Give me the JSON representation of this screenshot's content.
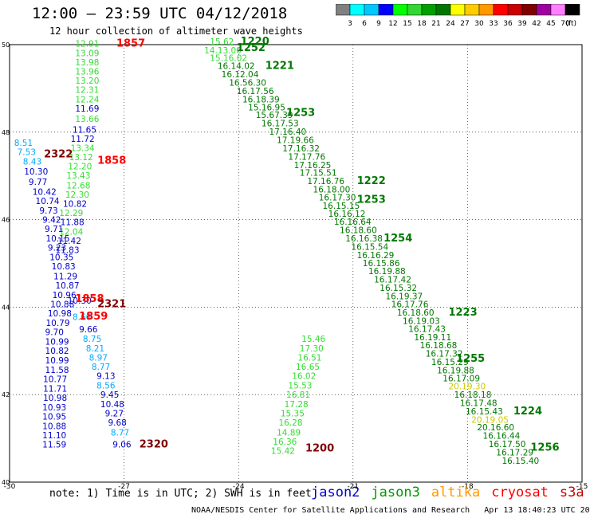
{
  "title": "12:00 — 23:59 UTC 04/12/2018",
  "subtitle": "12 hour collection of altimeter wave heights",
  "colorbar": {
    "unit": "(ft)",
    "bins": [
      {
        "label": "",
        "color": "#808080"
      },
      {
        "label": "3",
        "color": "#00ffff"
      },
      {
        "label": "6",
        "color": "#00c8ff"
      },
      {
        "label": "9",
        "color": "#0000ff"
      },
      {
        "label": "12",
        "color": "#00ff00"
      },
      {
        "label": "15",
        "color": "#33d633"
      },
      {
        "label": "18",
        "color": "#00a000"
      },
      {
        "label": "21",
        "color": "#007800"
      },
      {
        "label": "24",
        "color": "#ffff00"
      },
      {
        "label": "27",
        "color": "#ffcc00"
      },
      {
        "label": "30",
        "color": "#ff9900"
      },
      {
        "label": "33",
        "color": "#ff0000"
      },
      {
        "label": "36",
        "color": "#c80000"
      },
      {
        "label": "39",
        "color": "#800000"
      },
      {
        "label": "42",
        "color": "#a000a0"
      },
      {
        "label": "45",
        "color": "#ff80ff"
      },
      {
        "label": "70",
        "color": "#000000"
      }
    ]
  },
  "axes": {
    "x_ticks": [
      "-30",
      "-27",
      "-24",
      "-21",
      "-18",
      "-15"
    ],
    "y_ticks": [
      "50",
      "48",
      "46",
      "44",
      "42",
      "40"
    ]
  },
  "note": "note: 1) Time is in UTC; 2) SWH is in feet",
  "legend": [
    {
      "name": "jason2",
      "color": "#0000cc"
    },
    {
      "name": "jason3",
      "color": "#009900"
    },
    {
      "name": "altika",
      "color": "#ff9900"
    },
    {
      "name": "cryosat",
      "color": "#ff0000"
    },
    {
      "name": "s3a",
      "color": "#cc0000"
    }
  ],
  "footer": "NOAA/NESDIS Center for Satellite Applications and Research   Apr 13 18:40:23 UTC 2018",
  "map_labels": [
    {
      "t": "12.91",
      "lon": -28.28,
      "lat": 49.95,
      "c": "#33dd33"
    },
    {
      "t": "13.09",
      "lon": -28.28,
      "lat": 49.74,
      "c": "#33dd33"
    },
    {
      "t": "13.98",
      "lon": -28.28,
      "lat": 49.53,
      "c": "#33dd33"
    },
    {
      "t": "13.96",
      "lon": -28.28,
      "lat": 49.32,
      "c": "#33dd33"
    },
    {
      "t": "13.20",
      "lon": -28.28,
      "lat": 49.11,
      "c": "#33dd33"
    },
    {
      "t": "12.31",
      "lon": -28.28,
      "lat": 48.9,
      "c": "#33dd33"
    },
    {
      "t": "12.24",
      "lon": -28.28,
      "lat": 48.68,
      "c": "#33dd33"
    },
    {
      "t": "11.69",
      "lon": -28.28,
      "lat": 48.47,
      "c": "#0000cc"
    },
    {
      "t": "13.66",
      "lon": -28.28,
      "lat": 48.23,
      "c": "#33dd33"
    },
    {
      "t": "11.65",
      "lon": -28.35,
      "lat": 47.99,
      "c": "#0000cc"
    },
    {
      "t": "11.72",
      "lon": -28.4,
      "lat": 47.78,
      "c": "#0000cc"
    },
    {
      "t": "13.34",
      "lon": -28.4,
      "lat": 47.57,
      "c": "#33dd33"
    },
    {
      "t": "13.12",
      "lon": -28.44,
      "lat": 47.36,
      "c": "#33dd33"
    },
    {
      "t": "12.20",
      "lon": -28.47,
      "lat": 47.15,
      "c": "#33dd33"
    },
    {
      "t": "13.43",
      "lon": -28.51,
      "lat": 46.94,
      "c": "#33dd33"
    },
    {
      "t": "12.68",
      "lon": -28.51,
      "lat": 46.71,
      "c": "#33dd33"
    },
    {
      "t": "12.30",
      "lon": -28.54,
      "lat": 46.5,
      "c": "#33dd33"
    },
    {
      "t": "10.82",
      "lon": -28.6,
      "lat": 46.29,
      "c": "#0000cc"
    },
    {
      "t": "12.29",
      "lon": -28.7,
      "lat": 46.08,
      "c": "#33dd33"
    },
    {
      "t": "11.88",
      "lon": -28.67,
      "lat": 45.87,
      "c": "#0000cc"
    },
    {
      "t": "12.04",
      "lon": -28.7,
      "lat": 45.66,
      "c": "#33dd33"
    },
    {
      "t": "11.42",
      "lon": -28.75,
      "lat": 45.45,
      "c": "#0000cc"
    },
    {
      "t": "11.83",
      "lon": -28.8,
      "lat": 45.24,
      "c": "#0000cc"
    },
    {
      "t": "8.51",
      "lon": -29.88,
      "lat": 47.69,
      "c": "#00aaff"
    },
    {
      "t": "7.53",
      "lon": -29.8,
      "lat": 47.48,
      "c": "#00aaff"
    },
    {
      "t": "8.43",
      "lon": -29.65,
      "lat": 47.26,
      "c": "#00aaff"
    },
    {
      "t": "10.30",
      "lon": -29.62,
      "lat": 47.03,
      "c": "#0000cc"
    },
    {
      "t": "9.77",
      "lon": -29.5,
      "lat": 46.79,
      "c": "#0000cc"
    },
    {
      "t": "10.42",
      "lon": -29.4,
      "lat": 46.57,
      "c": "#0000cc"
    },
    {
      "t": "10.74",
      "lon": -29.32,
      "lat": 46.36,
      "c": "#0000cc"
    },
    {
      "t": "9.73",
      "lon": -29.22,
      "lat": 46.14,
      "c": "#0000cc"
    },
    {
      "t": "9.42",
      "lon": -29.14,
      "lat": 45.93,
      "c": "#0000cc"
    },
    {
      "t": "9.71",
      "lon": -29.08,
      "lat": 45.72,
      "c": "#0000cc"
    },
    {
      "t": "10.15",
      "lon": -29.05,
      "lat": 45.5,
      "c": "#0000cc"
    },
    {
      "t": "9.23",
      "lon": -29.0,
      "lat": 45.29,
      "c": "#0000cc"
    },
    {
      "t": "10.35",
      "lon": -28.95,
      "lat": 45.07,
      "c": "#0000cc"
    },
    {
      "t": "10.83",
      "lon": -28.9,
      "lat": 44.86,
      "c": "#0000cc"
    },
    {
      "t": "11.29",
      "lon": -28.85,
      "lat": 44.64,
      "c": "#0000cc"
    },
    {
      "t": "10.87",
      "lon": -28.8,
      "lat": 44.43,
      "c": "#0000cc"
    },
    {
      "t": "10.96",
      "lon": -28.88,
      "lat": 44.21,
      "c": "#0000cc"
    },
    {
      "t": "10.30",
      "lon": -28.48,
      "lat": 44.08,
      "c": "#0000cc"
    },
    {
      "t": "10.88",
      "lon": -28.93,
      "lat": 44.0,
      "c": "#0000cc"
    },
    {
      "t": "10.98",
      "lon": -29.0,
      "lat": 43.79,
      "c": "#0000cc"
    },
    {
      "t": "8.66",
      "lon": -28.35,
      "lat": 43.71,
      "c": "#00aaff"
    },
    {
      "t": "10.79",
      "lon": -29.05,
      "lat": 43.57,
      "c": "#0000cc"
    },
    {
      "t": "9.66",
      "lon": -28.18,
      "lat": 43.42,
      "c": "#0000cc"
    },
    {
      "t": "9.70",
      "lon": -29.07,
      "lat": 43.36,
      "c": "#0000cc"
    },
    {
      "t": "10.99",
      "lon": -29.07,
      "lat": 43.14,
      "c": "#0000cc"
    },
    {
      "t": "8.75",
      "lon": -28.08,
      "lat": 43.21,
      "c": "#00aaff"
    },
    {
      "t": "10.82",
      "lon": -29.07,
      "lat": 42.93,
      "c": "#0000cc"
    },
    {
      "t": "8.21",
      "lon": -28.0,
      "lat": 42.99,
      "c": "#00aaff"
    },
    {
      "t": "10.99",
      "lon": -29.07,
      "lat": 42.71,
      "c": "#0000cc"
    },
    {
      "t": "8.97",
      "lon": -27.92,
      "lat": 42.78,
      "c": "#00aaff"
    },
    {
      "t": "11.58",
      "lon": -29.07,
      "lat": 42.5,
      "c": "#0000cc"
    },
    {
      "t": "8.77",
      "lon": -27.85,
      "lat": 42.57,
      "c": "#00aaff"
    },
    {
      "t": "10.77",
      "lon": -29.12,
      "lat": 42.29,
      "c": "#0000cc"
    },
    {
      "t": "9.13",
      "lon": -27.72,
      "lat": 42.36,
      "c": "#0000cc"
    },
    {
      "t": "11.71",
      "lon": -29.12,
      "lat": 42.07,
      "c": "#0000cc"
    },
    {
      "t": "8.56",
      "lon": -27.72,
      "lat": 42.14,
      "c": "#00aaff"
    },
    {
      "t": "10.98",
      "lon": -29.12,
      "lat": 41.86,
      "c": "#0000cc"
    },
    {
      "t": "9.45",
      "lon": -27.62,
      "lat": 41.93,
      "c": "#0000cc"
    },
    {
      "t": "10.93",
      "lon": -29.14,
      "lat": 41.64,
      "c": "#0000cc"
    },
    {
      "t": "10.48",
      "lon": -27.62,
      "lat": 41.71,
      "c": "#0000cc"
    },
    {
      "t": "10.95",
      "lon": -29.14,
      "lat": 41.43,
      "c": "#0000cc"
    },
    {
      "t": "9.27",
      "lon": -27.5,
      "lat": 41.5,
      "c": "#0000cc"
    },
    {
      "t": "10.88",
      "lon": -29.14,
      "lat": 41.21,
      "c": "#0000cc"
    },
    {
      "t": "9.68",
      "lon": -27.42,
      "lat": 41.29,
      "c": "#0000cc"
    },
    {
      "t": "11.10",
      "lon": -29.14,
      "lat": 41.0,
      "c": "#0000cc"
    },
    {
      "t": "8.77",
      "lon": -27.35,
      "lat": 41.07,
      "c": "#00aaff"
    },
    {
      "t": "11.59",
      "lon": -29.14,
      "lat": 40.79,
      "c": "#0000cc"
    },
    {
      "t": "9.06",
      "lon": -27.3,
      "lat": 40.79,
      "c": "#0000cc"
    },
    {
      "t": "1857",
      "lon": -27.2,
      "lat": 49.95,
      "c": "#ff0000",
      "bold": true
    },
    {
      "t": "2322",
      "lon": -29.1,
      "lat": 47.42,
      "c": "#800000",
      "bold": true
    },
    {
      "t": "1858",
      "lon": -27.7,
      "lat": 47.28,
      "c": "#ff0000",
      "bold": true
    },
    {
      "t": "1858",
      "lon": -28.28,
      "lat": 44.12,
      "c": "#ff0000",
      "bold": true
    },
    {
      "t": "2321",
      "lon": -27.7,
      "lat": 44.0,
      "c": "#800000",
      "bold": true
    },
    {
      "t": "1859",
      "lon": -28.18,
      "lat": 43.72,
      "c": "#ff0000",
      "bold": true
    },
    {
      "t": "2320",
      "lon": -26.6,
      "lat": 40.79,
      "c": "#800000",
      "bold": true
    },
    {
      "t": "1200",
      "lon": -22.25,
      "lat": 40.7,
      "c": "#800000",
      "bold": true
    },
    {
      "t": "15.62",
      "lon": -24.75,
      "lat": 50.0,
      "c": "#33dd33"
    },
    {
      "t": "1220",
      "lon": -23.95,
      "lat": 50.0,
      "c": "#007800",
      "bold": true
    },
    {
      "t": "14.13.00",
      "lon": -24.9,
      "lat": 49.8,
      "c": "#33dd33"
    },
    {
      "t": "1252",
      "lon": -24.05,
      "lat": 49.85,
      "c": "#007800",
      "bold": true
    },
    {
      "t": "15.16.02",
      "lon": -24.75,
      "lat": 49.63,
      "c": "#33dd33"
    },
    {
      "t": "16.14.02",
      "lon": -24.55,
      "lat": 49.44,
      "c": "#007800"
    },
    {
      "t": "1221",
      "lon": -23.3,
      "lat": 49.44,
      "c": "#007800",
      "bold": true
    },
    {
      "t": "16.12.04",
      "lon": -24.45,
      "lat": 49.25,
      "c": "#007800"
    },
    {
      "t": "16.56.30",
      "lon": -24.25,
      "lat": 49.06,
      "c": "#007800"
    },
    {
      "t": "16.17.56",
      "lon": -24.05,
      "lat": 48.87,
      "c": "#007800"
    },
    {
      "t": "16.18.39",
      "lon": -23.9,
      "lat": 48.68,
      "c": "#007800"
    },
    {
      "t": "15.16.95",
      "lon": -23.75,
      "lat": 48.5,
      "c": "#007800"
    },
    {
      "t": "1253",
      "lon": -22.75,
      "lat": 48.37,
      "c": "#007800",
      "bold": true
    },
    {
      "t": "15.67.39",
      "lon": -23.55,
      "lat": 48.32,
      "c": "#007800"
    },
    {
      "t": "16.17.53",
      "lon": -23.4,
      "lat": 48.13,
      "c": "#007800"
    },
    {
      "t": "17.16.40",
      "lon": -23.2,
      "lat": 47.94,
      "c": "#007800"
    },
    {
      "t": "17.19.66",
      "lon": -23.0,
      "lat": 47.75,
      "c": "#007800"
    },
    {
      "t": "17.16.32",
      "lon": -22.85,
      "lat": 47.56,
      "c": "#007800"
    },
    {
      "t": "17.17.76",
      "lon": -22.7,
      "lat": 47.37,
      "c": "#007800"
    },
    {
      "t": "17.16.25",
      "lon": -22.55,
      "lat": 47.18,
      "c": "#007800"
    },
    {
      "t": "17.15.51",
      "lon": -22.4,
      "lat": 47.0,
      "c": "#007800"
    },
    {
      "t": "17.16.76",
      "lon": -22.2,
      "lat": 46.81,
      "c": "#007800"
    },
    {
      "t": "1222",
      "lon": -20.9,
      "lat": 46.81,
      "c": "#007800",
      "bold": true
    },
    {
      "t": "16.18.00",
      "lon": -22.05,
      "lat": 46.62,
      "c": "#007800"
    },
    {
      "t": "16.17.30",
      "lon": -21.9,
      "lat": 46.44,
      "c": "#007800"
    },
    {
      "t": "1253",
      "lon": -20.9,
      "lat": 46.38,
      "c": "#007800",
      "bold": true
    },
    {
      "t": "16.15.15",
      "lon": -21.8,
      "lat": 46.25,
      "c": "#007800"
    },
    {
      "t": "16.16.12",
      "lon": -21.65,
      "lat": 46.07,
      "c": "#007800"
    },
    {
      "t": "16.16.64",
      "lon": -21.5,
      "lat": 45.88,
      "c": "#007800"
    },
    {
      "t": "16.18.60",
      "lon": -21.35,
      "lat": 45.69,
      "c": "#007800"
    },
    {
      "t": "16.16.38",
      "lon": -21.2,
      "lat": 45.5,
      "c": "#007800"
    },
    {
      "t": "1254",
      "lon": -20.2,
      "lat": 45.5,
      "c": "#007800",
      "bold": true
    },
    {
      "t": "16.15.54",
      "lon": -21.05,
      "lat": 45.31,
      "c": "#007800"
    },
    {
      "t": "16.16.29",
      "lon": -20.9,
      "lat": 45.12,
      "c": "#007800"
    },
    {
      "t": "16.15.86",
      "lon": -20.75,
      "lat": 44.94,
      "c": "#007800"
    },
    {
      "t": "16.19.88",
      "lon": -20.6,
      "lat": 44.75,
      "c": "#007800"
    },
    {
      "t": "16.17.42",
      "lon": -20.45,
      "lat": 44.56,
      "c": "#007800"
    },
    {
      "t": "16.15.32",
      "lon": -20.3,
      "lat": 44.37,
      "c": "#007800"
    },
    {
      "t": "16.19.37",
      "lon": -20.15,
      "lat": 44.18,
      "c": "#007800"
    },
    {
      "t": "16.17.76",
      "lon": -20.0,
      "lat": 44.0,
      "c": "#007800"
    },
    {
      "t": "16.18.60",
      "lon": -19.85,
      "lat": 43.81,
      "c": "#007800"
    },
    {
      "t": "1223",
      "lon": -18.5,
      "lat": 43.81,
      "c": "#007800",
      "bold": true
    },
    {
      "t": "16.19.03",
      "lon": -19.7,
      "lat": 43.62,
      "c": "#007800"
    },
    {
      "t": "16.17.43",
      "lon": -19.55,
      "lat": 43.43,
      "c": "#007800"
    },
    {
      "t": "16.19.11",
      "lon": -19.4,
      "lat": 43.24,
      "c": "#007800"
    },
    {
      "t": "16.18.68",
      "lon": -19.25,
      "lat": 43.06,
      "c": "#007800"
    },
    {
      "t": "16.17.32",
      "lon": -19.1,
      "lat": 42.87,
      "c": "#007800"
    },
    {
      "t": "1255",
      "lon": -18.3,
      "lat": 42.75,
      "c": "#007800",
      "bold": true
    },
    {
      "t": "16.15.29",
      "lon": -18.95,
      "lat": 42.68,
      "c": "#007800"
    },
    {
      "t": "16.19.88",
      "lon": -18.8,
      "lat": 42.49,
      "c": "#007800"
    },
    {
      "t": "16.17.09",
      "lon": -18.65,
      "lat": 42.3,
      "c": "#007800"
    },
    {
      "t": "20.19.30",
      "lon": -18.5,
      "lat": 42.12,
      "c": "#cccc00"
    },
    {
      "t": "16.18.18",
      "lon": -18.35,
      "lat": 41.93,
      "c": "#007800"
    },
    {
      "t": "16.17.48",
      "lon": -18.2,
      "lat": 41.74,
      "c": "#007800"
    },
    {
      "t": "16.15.43",
      "lon": -18.05,
      "lat": 41.55,
      "c": "#007800"
    },
    {
      "t": "1224",
      "lon": -16.8,
      "lat": 41.55,
      "c": "#007800",
      "bold": true
    },
    {
      "t": "20.19.05",
      "lon": -17.9,
      "lat": 41.36,
      "c": "#cccc00"
    },
    {
      "t": "20.16.60",
      "lon": -17.75,
      "lat": 41.18,
      "c": "#007800"
    },
    {
      "t": "16.16.44",
      "lon": -17.6,
      "lat": 40.99,
      "c": "#007800"
    },
    {
      "t": "16.17.50",
      "lon": -17.45,
      "lat": 40.8,
      "c": "#007800"
    },
    {
      "t": "1256",
      "lon": -16.35,
      "lat": 40.72,
      "c": "#007800",
      "bold": true
    },
    {
      "t": "16.17.29",
      "lon": -17.25,
      "lat": 40.61,
      "c": "#007800"
    },
    {
      "t": "16.15.40",
      "lon": -17.1,
      "lat": 40.42,
      "c": "#007800"
    },
    {
      "t": "15.46",
      "lon": -22.35,
      "lat": 43.21,
      "c": "#33dd33"
    },
    {
      "t": "17.30",
      "lon": -22.4,
      "lat": 42.99,
      "c": "#33dd33"
    },
    {
      "t": "16.51",
      "lon": -22.45,
      "lat": 42.78,
      "c": "#33dd33"
    },
    {
      "t": "16.65",
      "lon": -22.5,
      "lat": 42.57,
      "c": "#33dd33"
    },
    {
      "t": "16.02",
      "lon": -22.6,
      "lat": 42.36,
      "c": "#33dd33"
    },
    {
      "t": "15.53",
      "lon": -22.7,
      "lat": 42.14,
      "c": "#33dd33"
    },
    {
      "t": "16.81",
      "lon": -22.75,
      "lat": 41.93,
      "c": "#33dd33"
    },
    {
      "t": "17.28",
      "lon": -22.8,
      "lat": 41.71,
      "c": "#33dd33"
    },
    {
      "t": "15.35",
      "lon": -22.9,
      "lat": 41.5,
      "c": "#33dd33"
    },
    {
      "t": "16.28",
      "lon": -22.95,
      "lat": 41.29,
      "c": "#33dd33"
    },
    {
      "t": "14.89",
      "lon": -23.0,
      "lat": 41.07,
      "c": "#33dd33"
    },
    {
      "t": "16.36",
      "lon": -23.1,
      "lat": 40.86,
      "c": "#33dd33"
    },
    {
      "t": "15.42",
      "lon": -23.15,
      "lat": 40.65,
      "c": "#33dd33"
    }
  ]
}
